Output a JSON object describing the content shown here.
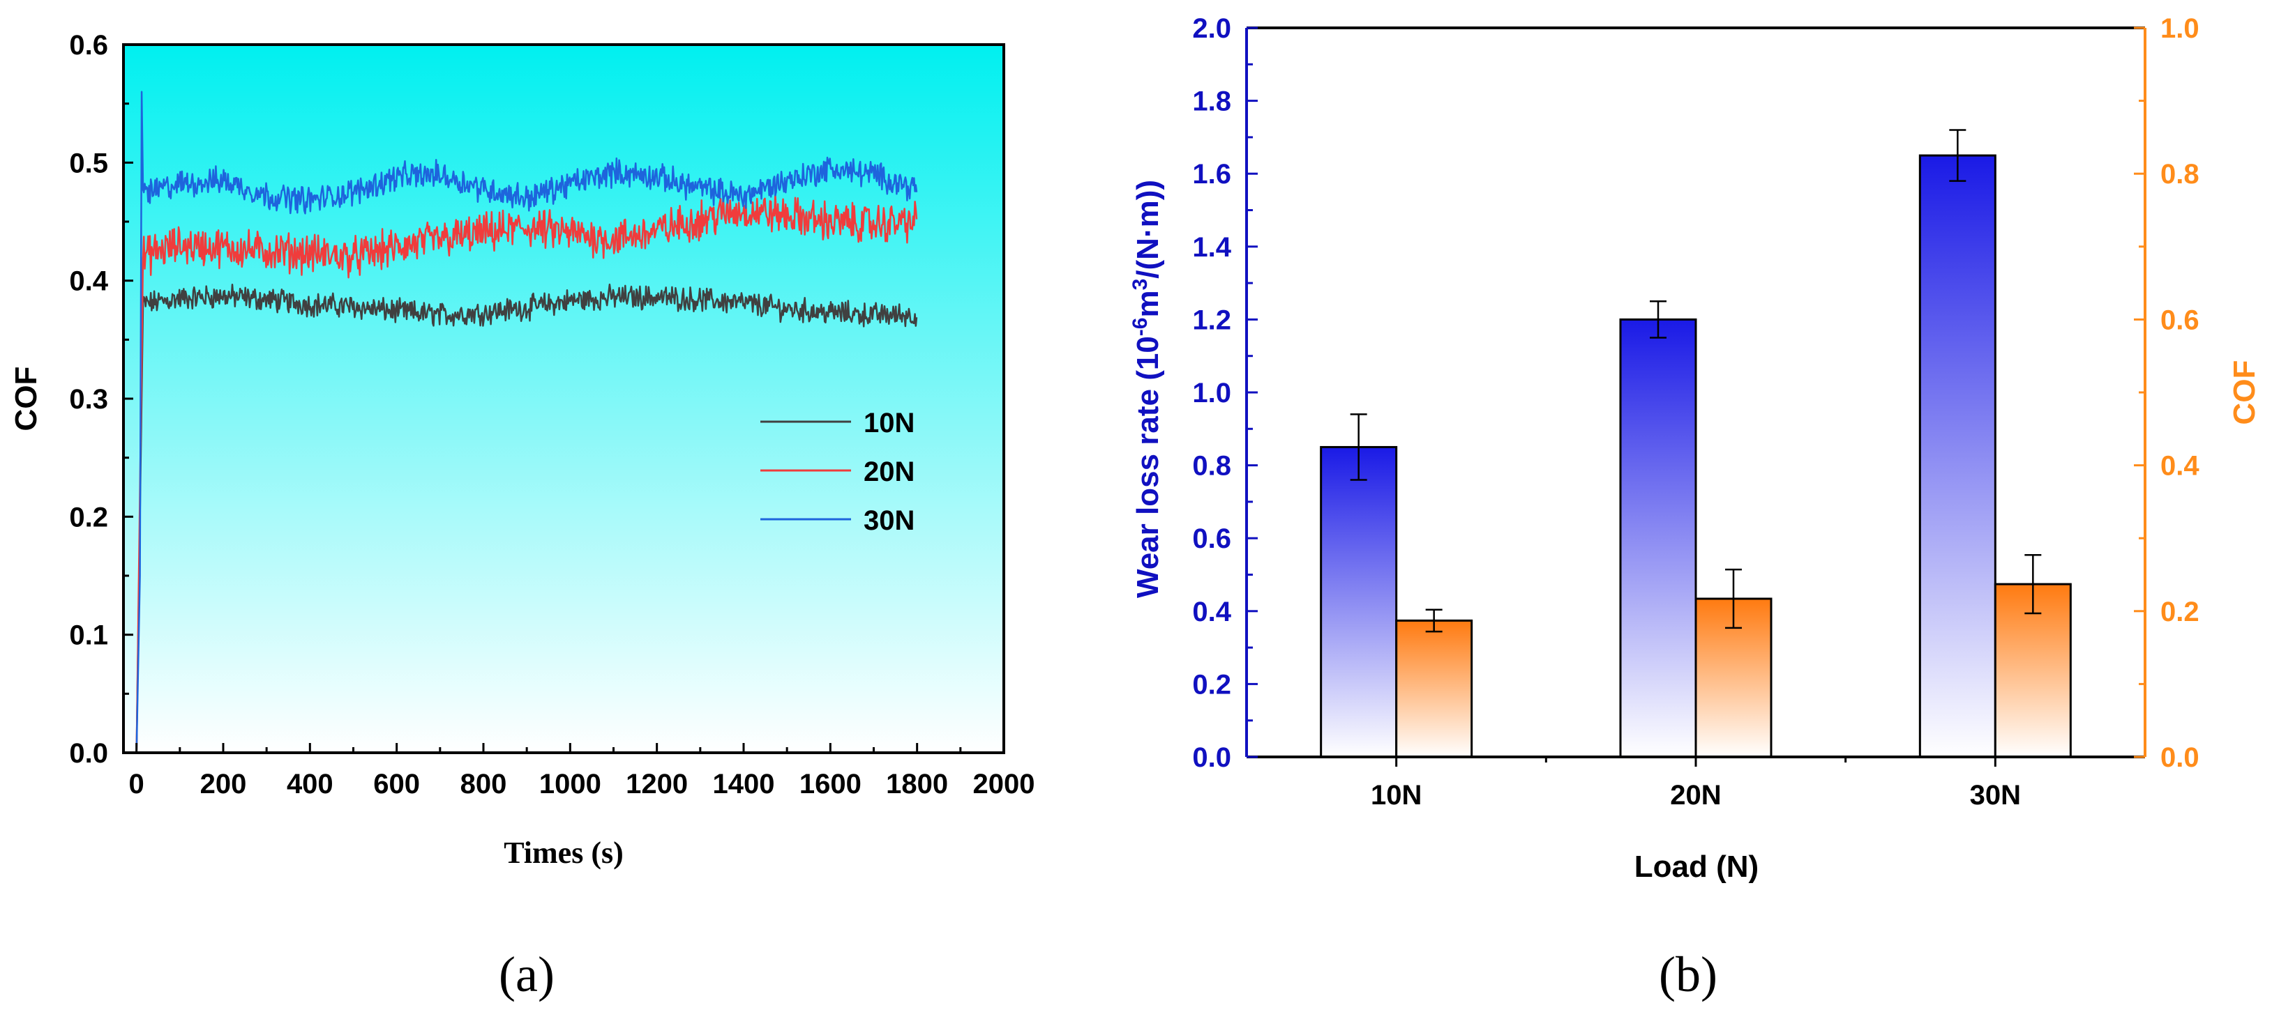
{
  "colors": {
    "background": "#ffffff",
    "plot_bg_top": "#00f0f0",
    "plot_bg_bottom": "#ffffff",
    "axis": "#000000",
    "wear_axis": "#1010c0",
    "cof_axis": "#ff8c1a",
    "bar_blue_top": "#1a1ae6",
    "bar_orange_top": "#ff7a10",
    "series_10N": "#404040",
    "series_20N": "#f03c3c",
    "series_30N": "#1e64dc"
  },
  "chart_data": [
    {
      "id": "a",
      "type": "line",
      "panel_label": "(a)",
      "title": "",
      "xlabel": "Times (s)",
      "ylabel": "COF",
      "xlim": [
        -30,
        2000
      ],
      "ylim": [
        0.0,
        0.6
      ],
      "xticks": [
        "0",
        "200",
        "400",
        "600",
        "800",
        "1000",
        "1200",
        "1400",
        "1600",
        "1800",
        "2000"
      ],
      "yticks": [
        "0.0",
        "0.1",
        "0.2",
        "0.3",
        "0.4",
        "0.5",
        "0.6"
      ],
      "legend_position": "center-right",
      "series": [
        {
          "name": "10N",
          "color_key": "series_10N",
          "noise": 0.008,
          "x": [
            0,
            15,
            50,
            100,
            200,
            300,
            400,
            500,
            600,
            700,
            800,
            900,
            1000,
            1100,
            1200,
            1300,
            1400,
            1500,
            1600,
            1700,
            1800
          ],
          "y": [
            0.0,
            0.38,
            0.382,
            0.385,
            0.387,
            0.384,
            0.38,
            0.378,
            0.374,
            0.371,
            0.373,
            0.377,
            0.383,
            0.386,
            0.386,
            0.384,
            0.381,
            0.376,
            0.373,
            0.371,
            0.371
          ]
        },
        {
          "name": "20N",
          "color_key": "series_20N",
          "noise": 0.013,
          "x": [
            0,
            15,
            50,
            100,
            200,
            300,
            400,
            500,
            600,
            700,
            800,
            900,
            1000,
            1100,
            1200,
            1300,
            1400,
            1500,
            1600,
            1700,
            1800
          ],
          "y": [
            0.0,
            0.42,
            0.425,
            0.43,
            0.428,
            0.425,
            0.423,
            0.42,
            0.428,
            0.435,
            0.44,
            0.445,
            0.44,
            0.435,
            0.442,
            0.452,
            0.46,
            0.455,
            0.45,
            0.448,
            0.45
          ]
        },
        {
          "name": "30N",
          "color_key": "series_30N",
          "noise": 0.009,
          "x": [
            0,
            8,
            12,
            15,
            30,
            100,
            200,
            300,
            400,
            500,
            600,
            700,
            800,
            900,
            1000,
            1100,
            1200,
            1300,
            1400,
            1500,
            1600,
            1700,
            1800
          ],
          "y": [
            0.0,
            0.15,
            0.56,
            0.48,
            0.475,
            0.482,
            0.485,
            0.472,
            0.468,
            0.475,
            0.488,
            0.49,
            0.478,
            0.47,
            0.482,
            0.492,
            0.488,
            0.478,
            0.472,
            0.485,
            0.495,
            0.49,
            0.478
          ]
        }
      ]
    },
    {
      "id": "b",
      "type": "bar",
      "panel_label": "(b)",
      "title": "",
      "xlabel": "Load (N)",
      "ylabel_left": "Wear loss rate (10-6m3/(N·m))",
      "ylabel_right": "COF",
      "categories": [
        "10N",
        "20N",
        "30N"
      ],
      "ylim_left": [
        0.0,
        2.0
      ],
      "ylim_right": [
        0.0,
        1.0
      ],
      "yticks_left": [
        "0.0",
        "0.2",
        "0.4",
        "0.6",
        "0.8",
        "1.0",
        "1.2",
        "1.4",
        "1.6",
        "1.8",
        "2.0"
      ],
      "yticks_right": [
        "0.0",
        "0.2",
        "0.4",
        "0.6",
        "0.8",
        "1.0"
      ],
      "series": [
        {
          "name": "Wear loss rate",
          "axis": "left",
          "color_key": "bar_blue_top",
          "values": [
            0.85,
            1.2,
            1.65
          ],
          "errors": [
            0.09,
            0.05,
            0.07
          ]
        },
        {
          "name": "COF",
          "axis": "right",
          "color_key": "bar_orange_top",
          "values": [
            0.187,
            0.217,
            0.237
          ],
          "errors": [
            0.015,
            0.04,
            0.04
          ]
        }
      ]
    }
  ]
}
